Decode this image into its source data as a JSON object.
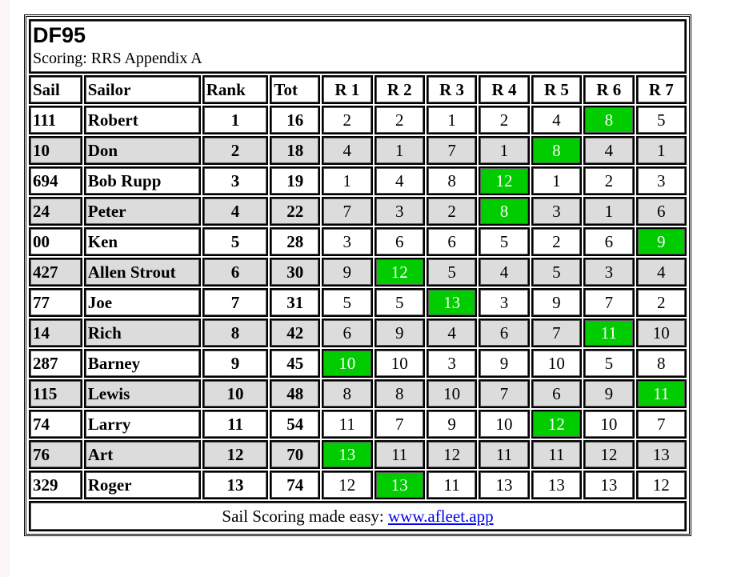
{
  "title": "DF95",
  "subtitle": "Scoring: RRS Appendix A",
  "columns": [
    "Sail",
    "Sailor",
    "Rank",
    "Tot",
    "R 1",
    "R 2",
    "R 3",
    "R 4",
    "R 5",
    "R 6",
    "R 7"
  ],
  "discard_color": "#00cc00",
  "rows": [
    {
      "sail": "111",
      "sailor": "Robert",
      "rank": "1",
      "tot": "16",
      "races": [
        "2",
        "2",
        "1",
        "2",
        "4",
        "8",
        "5"
      ],
      "discard": 5
    },
    {
      "sail": "10",
      "sailor": "Don",
      "rank": "2",
      "tot": "18",
      "races": [
        "4",
        "1",
        "7",
        "1",
        "8",
        "4",
        "1"
      ],
      "discard": 4
    },
    {
      "sail": "694",
      "sailor": "Bob Rupp",
      "rank": "3",
      "tot": "19",
      "races": [
        "1",
        "4",
        "8",
        "12",
        "1",
        "2",
        "3"
      ],
      "discard": 3
    },
    {
      "sail": "24",
      "sailor": "Peter",
      "rank": "4",
      "tot": "22",
      "races": [
        "7",
        "3",
        "2",
        "8",
        "3",
        "1",
        "6"
      ],
      "discard": 3
    },
    {
      "sail": "00",
      "sailor": "Ken",
      "rank": "5",
      "tot": "28",
      "races": [
        "3",
        "6",
        "6",
        "5",
        "2",
        "6",
        "9"
      ],
      "discard": 6
    },
    {
      "sail": "427",
      "sailor": "Allen Strout",
      "rank": "6",
      "tot": "30",
      "races": [
        "9",
        "12",
        "5",
        "4",
        "5",
        "3",
        "4"
      ],
      "discard": 1
    },
    {
      "sail": "77",
      "sailor": "Joe",
      "rank": "7",
      "tot": "31",
      "races": [
        "5",
        "5",
        "13",
        "3",
        "9",
        "7",
        "2"
      ],
      "discard": 2
    },
    {
      "sail": "14",
      "sailor": "Rich",
      "rank": "8",
      "tot": "42",
      "races": [
        "6",
        "9",
        "4",
        "6",
        "7",
        "11",
        "10"
      ],
      "discard": 5
    },
    {
      "sail": "287",
      "sailor": "Barney",
      "rank": "9",
      "tot": "45",
      "races": [
        "10",
        "10",
        "3",
        "9",
        "10",
        "5",
        "8"
      ],
      "discard": 0
    },
    {
      "sail": "115",
      "sailor": "Lewis",
      "rank": "10",
      "tot": "48",
      "races": [
        "8",
        "8",
        "10",
        "7",
        "6",
        "9",
        "11"
      ],
      "discard": 6
    },
    {
      "sail": "74",
      "sailor": "Larry",
      "rank": "11",
      "tot": "54",
      "races": [
        "11",
        "7",
        "9",
        "10",
        "12",
        "10",
        "7"
      ],
      "discard": 4
    },
    {
      "sail": "76",
      "sailor": "Art",
      "rank": "12",
      "tot": "70",
      "races": [
        "13",
        "11",
        "12",
        "11",
        "11",
        "12",
        "13"
      ],
      "discard": 0
    },
    {
      "sail": "329",
      "sailor": "Roger",
      "rank": "13",
      "tot": "74",
      "races": [
        "12",
        "13",
        "11",
        "13",
        "13",
        "13",
        "12"
      ],
      "discard": 1
    }
  ],
  "footer": {
    "text": "Sail Scoring made easy: ",
    "link": "www.afleet.app"
  }
}
